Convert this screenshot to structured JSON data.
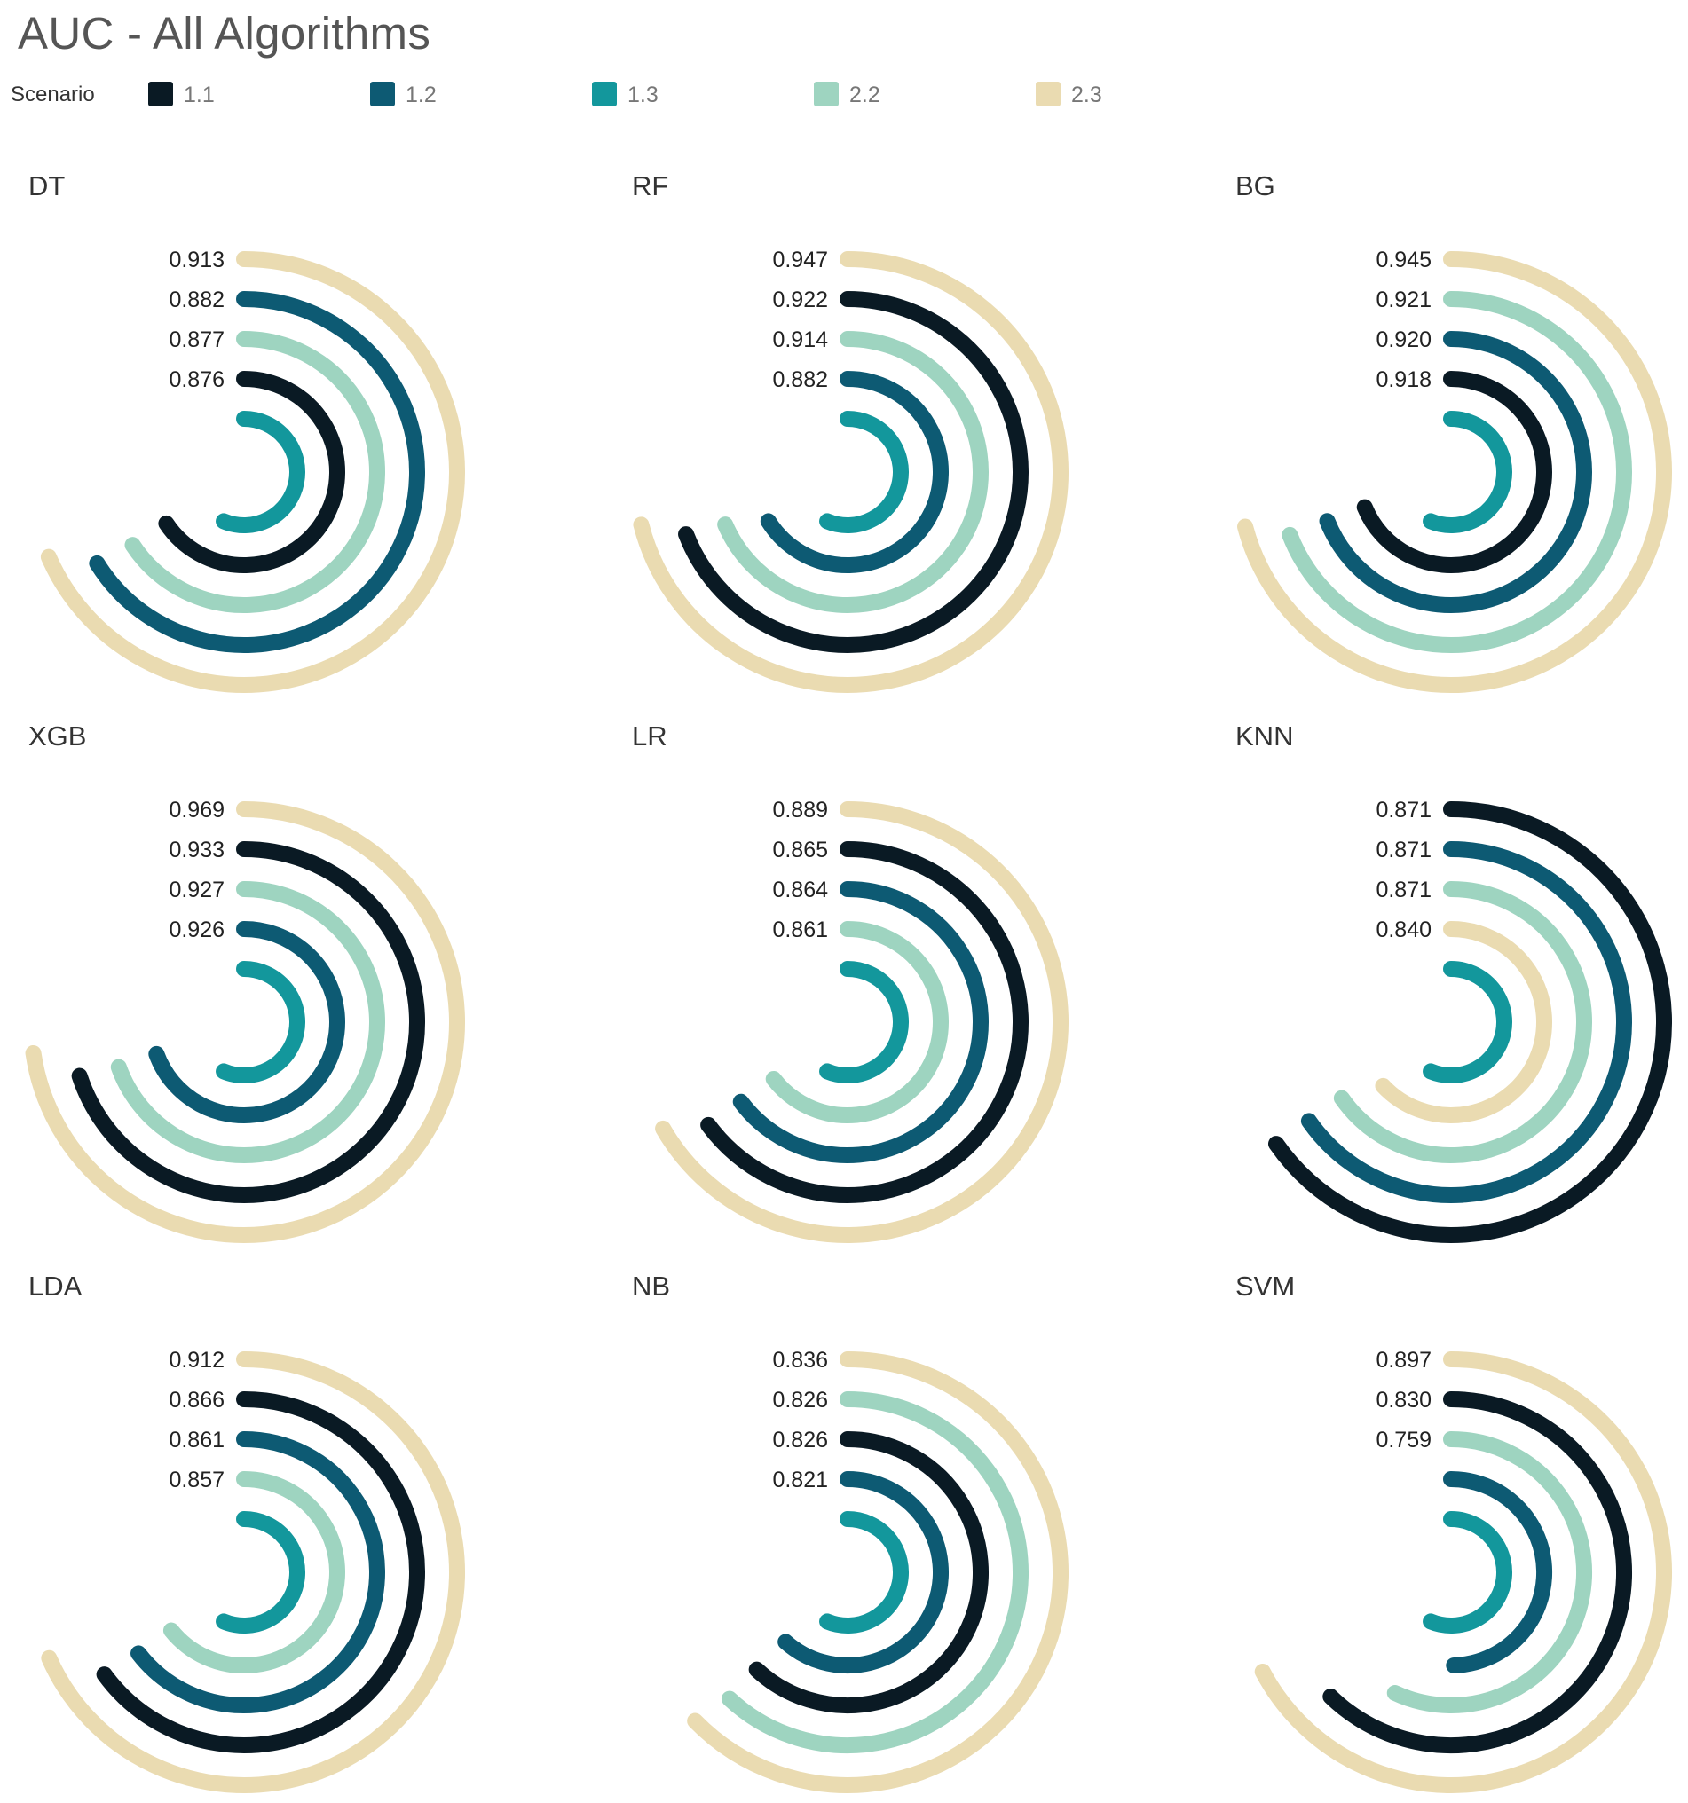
{
  "title": "AUC - All Algorithms",
  "legend": {
    "label": "Scenario",
    "items": [
      {
        "label": "1.1",
        "color": "#0a1a24"
      },
      {
        "label": "1.2",
        "color": "#0d5a73"
      },
      {
        "label": "1.3",
        "color": "#13979c"
      },
      {
        "label": "2.2",
        "color": "#9ed4c0"
      },
      {
        "label": "2.3",
        "color": "#eadbb1"
      }
    ]
  },
  "chart_data": [
    {
      "type": "radial-bar",
      "title": "DT",
      "rings": [
        {
          "scenario": "2.3",
          "label": "0.913"
        },
        {
          "scenario": "1.2",
          "label": "0.882"
        },
        {
          "scenario": "2.2",
          "label": "0.877"
        },
        {
          "scenario": "1.1",
          "label": "0.876"
        },
        {
          "scenario": "1.3",
          "label": ""
        }
      ]
    },
    {
      "type": "radial-bar",
      "title": "RF",
      "rings": [
        {
          "scenario": "2.3",
          "label": "0.947"
        },
        {
          "scenario": "1.1",
          "label": "0.922"
        },
        {
          "scenario": "2.2",
          "label": "0.914"
        },
        {
          "scenario": "1.2",
          "label": "0.882"
        },
        {
          "scenario": "1.3",
          "label": ""
        }
      ]
    },
    {
      "type": "radial-bar",
      "title": "BG",
      "rings": [
        {
          "scenario": "2.3",
          "label": "0.945"
        },
        {
          "scenario": "2.2",
          "label": "0.921"
        },
        {
          "scenario": "1.2",
          "label": "0.920"
        },
        {
          "scenario": "1.1",
          "label": "0.918"
        },
        {
          "scenario": "1.3",
          "label": ""
        }
      ]
    },
    {
      "type": "radial-bar",
      "title": "XGB",
      "rings": [
        {
          "scenario": "2.3",
          "label": "0.969"
        },
        {
          "scenario": "1.1",
          "label": "0.933"
        },
        {
          "scenario": "2.2",
          "label": "0.927"
        },
        {
          "scenario": "1.2",
          "label": "0.926"
        },
        {
          "scenario": "1.3",
          "label": ""
        }
      ]
    },
    {
      "type": "radial-bar",
      "title": "LR",
      "rings": [
        {
          "scenario": "2.3",
          "label": "0.889"
        },
        {
          "scenario": "1.1",
          "label": "0.865"
        },
        {
          "scenario": "1.2",
          "label": "0.864"
        },
        {
          "scenario": "2.2",
          "label": "0.861"
        },
        {
          "scenario": "1.3",
          "label": ""
        }
      ]
    },
    {
      "type": "radial-bar",
      "title": "KNN",
      "rings": [
        {
          "scenario": "1.1",
          "label": "0.871"
        },
        {
          "scenario": "1.2",
          "label": "0.871"
        },
        {
          "scenario": "2.2",
          "label": "0.871"
        },
        {
          "scenario": "2.3",
          "label": "0.840"
        },
        {
          "scenario": "1.3",
          "label": ""
        }
      ]
    },
    {
      "type": "radial-bar",
      "title": "LDA",
      "rings": [
        {
          "scenario": "2.3",
          "label": "0.912"
        },
        {
          "scenario": "1.1",
          "label": "0.866"
        },
        {
          "scenario": "1.2",
          "label": "0.861"
        },
        {
          "scenario": "2.2",
          "label": "0.857"
        },
        {
          "scenario": "1.3",
          "label": ""
        }
      ]
    },
    {
      "type": "radial-bar",
      "title": "NB",
      "rings": [
        {
          "scenario": "2.3",
          "label": "0.836"
        },
        {
          "scenario": "2.2",
          "label": "0.826"
        },
        {
          "scenario": "1.1",
          "label": "0.826"
        },
        {
          "scenario": "1.2",
          "label": "0.821"
        },
        {
          "scenario": "1.3",
          "label": ""
        }
      ]
    },
    {
      "type": "radial-bar",
      "title": "SVM",
      "rings": [
        {
          "scenario": "2.3",
          "label": "0.897"
        },
        {
          "scenario": "1.1",
          "label": "0.830"
        },
        {
          "scenario": "2.2",
          "label": "0.759"
        },
        {
          "scenario": "1.2",
          "label": ""
        },
        {
          "scenario": "1.3",
          "label": ""
        }
      ]
    }
  ]
}
